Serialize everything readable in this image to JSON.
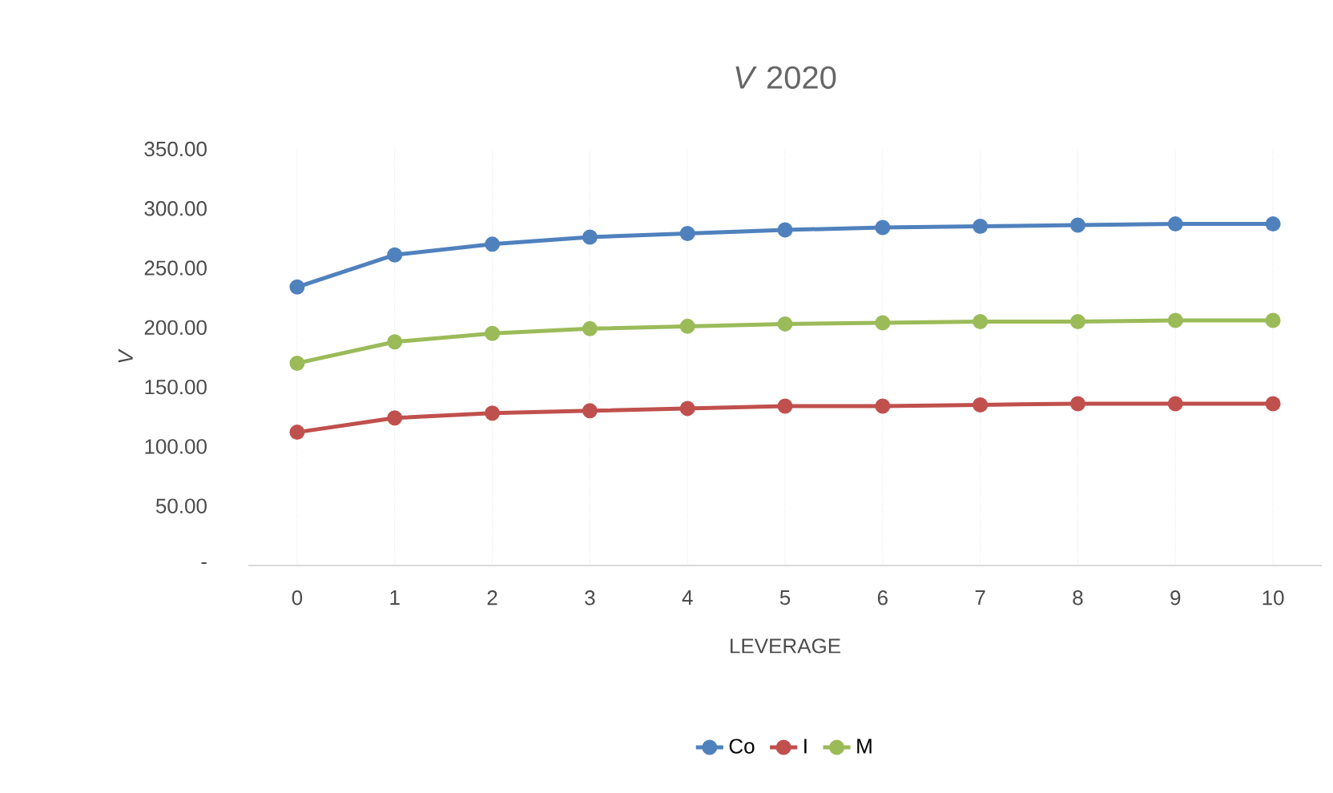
{
  "chart_data": {
    "type": "line",
    "title": "*V* 2020",
    "xlabel": "LEVERAGE",
    "ylabel": "V",
    "categories": [
      "0",
      "1",
      "2",
      "3",
      "4",
      "5",
      "6",
      "7",
      "8",
      "9",
      "10"
    ],
    "series": [
      {
        "name": "Co",
        "color": "#4f81bd",
        "values": [
          234,
          261,
          270,
          276,
          279,
          282,
          284,
          285,
          286,
          287,
          287
        ]
      },
      {
        "name": "I",
        "color": "#c0504d",
        "values": [
          112,
          124,
          128,
          130,
          132,
          134,
          134,
          135,
          136,
          136,
          136
        ]
      },
      {
        "name": "M",
        "color": "#9bbb59",
        "values": [
          170,
          188,
          195,
          199,
          201,
          203,
          204,
          205,
          205,
          206,
          206
        ]
      }
    ],
    "ylim": [
      0,
      350
    ],
    "yticks": [
      {
        "value": 0,
        "label": "-"
      },
      {
        "value": 50,
        "label": "50.00"
      },
      {
        "value": 100,
        "label": "100.00"
      },
      {
        "value": 150,
        "label": "150.00"
      },
      {
        "value": 200,
        "label": "200.00"
      },
      {
        "value": 250,
        "label": "250.00"
      },
      {
        "value": 300,
        "label": "300.00"
      },
      {
        "value": 350,
        "label": "350.00"
      }
    ],
    "grid": "x",
    "legend": "bottom",
    "marker": "circle",
    "line_style": "solid"
  }
}
